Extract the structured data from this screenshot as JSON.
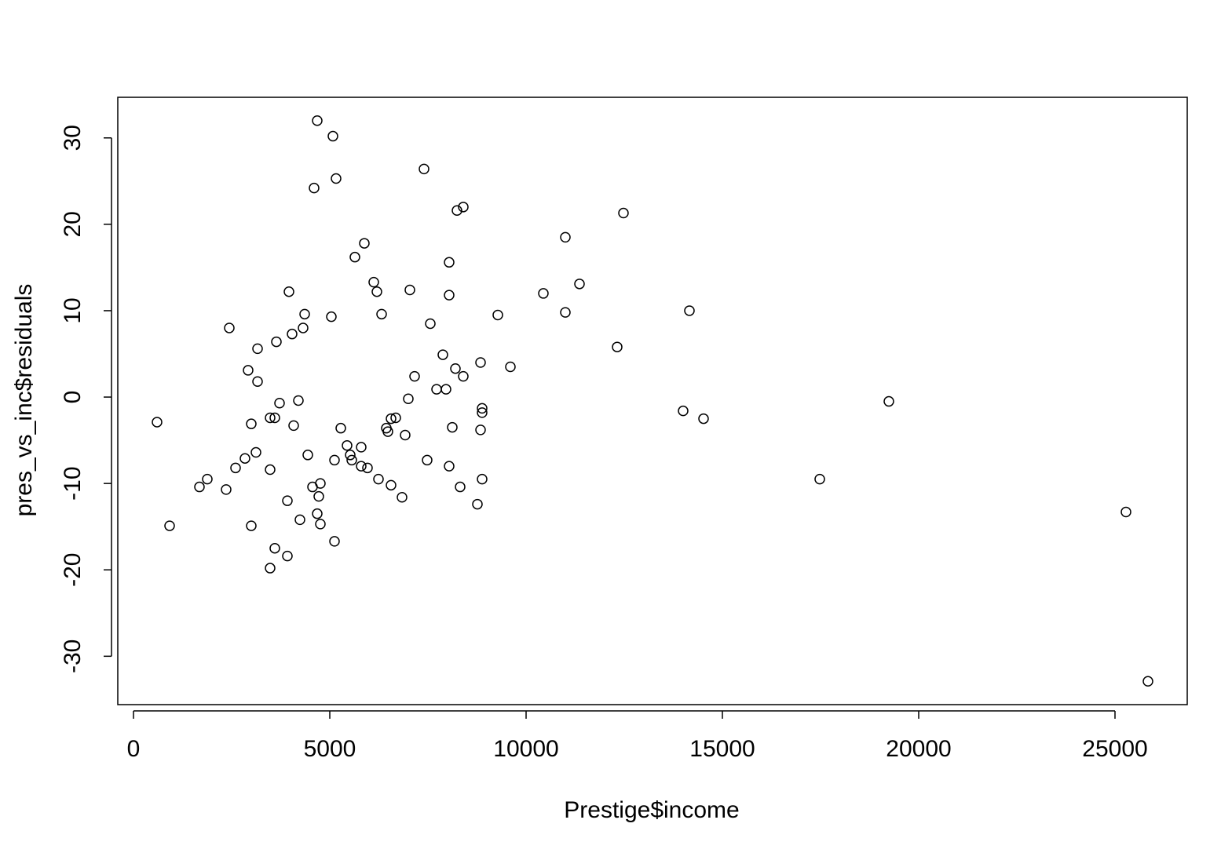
{
  "chart_data": {
    "type": "scatter",
    "xlabel": "Prestige$income",
    "ylabel": "pres_vs_inc$residuals",
    "x": [
      600,
      920,
      1680,
      1880,
      2360,
      2440,
      2600,
      2840,
      2920,
      3000,
      3000,
      3120,
      3160,
      3160,
      3480,
      3480,
      3480,
      3600,
      3600,
      3640,
      3720,
      3920,
      3920,
      3960,
      4040,
      4080,
      4200,
      4240,
      4320,
      4360,
      4440,
      4560,
      4600,
      4680,
      4680,
      4720,
      4760,
      4760,
      5040,
      5080,
      5120,
      5120,
      5160,
      5280,
      5440,
      5520,
      5560,
      5640,
      5800,
      5800,
      5880,
      5960,
      6120,
      6200,
      6240,
      6320,
      6440,
      6480,
      6560,
      6560,
      6680,
      6840,
      6920,
      7000,
      7040,
      7160,
      7400,
      7480,
      7560,
      7720,
      7880,
      7960,
      8040,
      8040,
      8040,
      8120,
      8200,
      8240,
      8320,
      8400,
      8400,
      8760,
      8840,
      8840,
      8880,
      8880,
      8880,
      9280,
      9600,
      10440,
      11000,
      11000,
      11360,
      12320,
      12480,
      14000,
      14160,
      14520,
      17480,
      19240,
      25280,
      25840
    ],
    "values": [
      -2.9,
      -14.9,
      -10.4,
      -9.5,
      -10.7,
      8.0,
      -8.2,
      -7.1,
      3.1,
      -3.1,
      -14.9,
      -6.4,
      5.6,
      1.8,
      -8.4,
      -2.4,
      -19.8,
      -2.4,
      -17.5,
      6.4,
      -0.7,
      -12.0,
      -18.4,
      12.2,
      7.3,
      -3.3,
      -0.4,
      -14.2,
      8.0,
      9.6,
      -6.7,
      -10.4,
      24.2,
      32.0,
      -13.5,
      -11.5,
      -10.0,
      -14.7,
      9.3,
      30.2,
      -7.3,
      -16.7,
      25.3,
      -3.6,
      -5.6,
      -6.7,
      -7.3,
      16.2,
      -5.8,
      -8.0,
      17.8,
      -8.2,
      13.3,
      12.2,
      -9.5,
      9.6,
      -3.6,
      -4.0,
      -10.2,
      -2.5,
      -2.4,
      -11.6,
      -4.4,
      -0.2,
      12.4,
      2.4,
      26.4,
      -7.3,
      8.5,
      0.9,
      4.9,
      0.9,
      15.6,
      11.8,
      -8.0,
      -3.5,
      3.3,
      21.6,
      -10.4,
      22.0,
      2.4,
      -12.4,
      4.0,
      -3.8,
      -1.3,
      -1.8,
      -9.5,
      9.5,
      3.5,
      12.0,
      18.5,
      9.8,
      13.1,
      5.8,
      21.3,
      -1.6,
      10.0,
      -2.5,
      -9.5,
      -0.5,
      -13.3,
      -32.9
    ],
    "xlim": [
      -400,
      26840
    ],
    "ylim": [
      -35.6,
      34.7
    ],
    "xticks": [
      0,
      5000,
      10000,
      15000,
      20000,
      25000
    ],
    "yticks": [
      -30,
      -20,
      -10,
      0,
      10,
      20,
      30
    ],
    "color": "#000000"
  }
}
